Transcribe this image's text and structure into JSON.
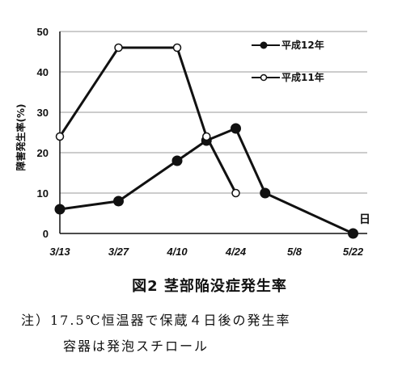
{
  "chart_data": {
    "type": "line",
    "title": "図2 茎部陥没症発生率",
    "ylabel": "障害発生率(%)",
    "xlabel": "",
    "categories": [
      "3/13",
      "3/27",
      "4/10",
      "4/24",
      "5/8",
      "5/22"
    ],
    "ylim": [
      0,
      50
    ],
    "yticks": [
      0,
      10,
      20,
      30,
      40,
      50
    ],
    "grid": "horizontal",
    "legend_position": "top-right",
    "x_unit_label": "日",
    "series": [
      {
        "name": "平成12年",
        "marker": "filled",
        "points": [
          {
            "x": "3/13",
            "y": 6
          },
          {
            "x": "3/27",
            "y": 8
          },
          {
            "x": "4/10",
            "y": 18
          },
          {
            "x": "4/17",
            "y": 23
          },
          {
            "x": "4/24",
            "y": 26
          },
          {
            "x": "5/1",
            "y": 10
          },
          {
            "x": "5/22",
            "y": 0
          }
        ]
      },
      {
        "name": "平成11年",
        "marker": "open",
        "points": [
          {
            "x": "3/13",
            "y": 24
          },
          {
            "x": "3/27",
            "y": 46
          },
          {
            "x": "4/10",
            "y": 46
          },
          {
            "x": "4/17",
            "y": 24
          },
          {
            "x": "4/24",
            "y": 10
          }
        ]
      }
    ]
  },
  "notes": {
    "line1": "注）17.5℃恒温器で保蔵４日後の発生率",
    "line2": "容器は発泡スチロール"
  }
}
